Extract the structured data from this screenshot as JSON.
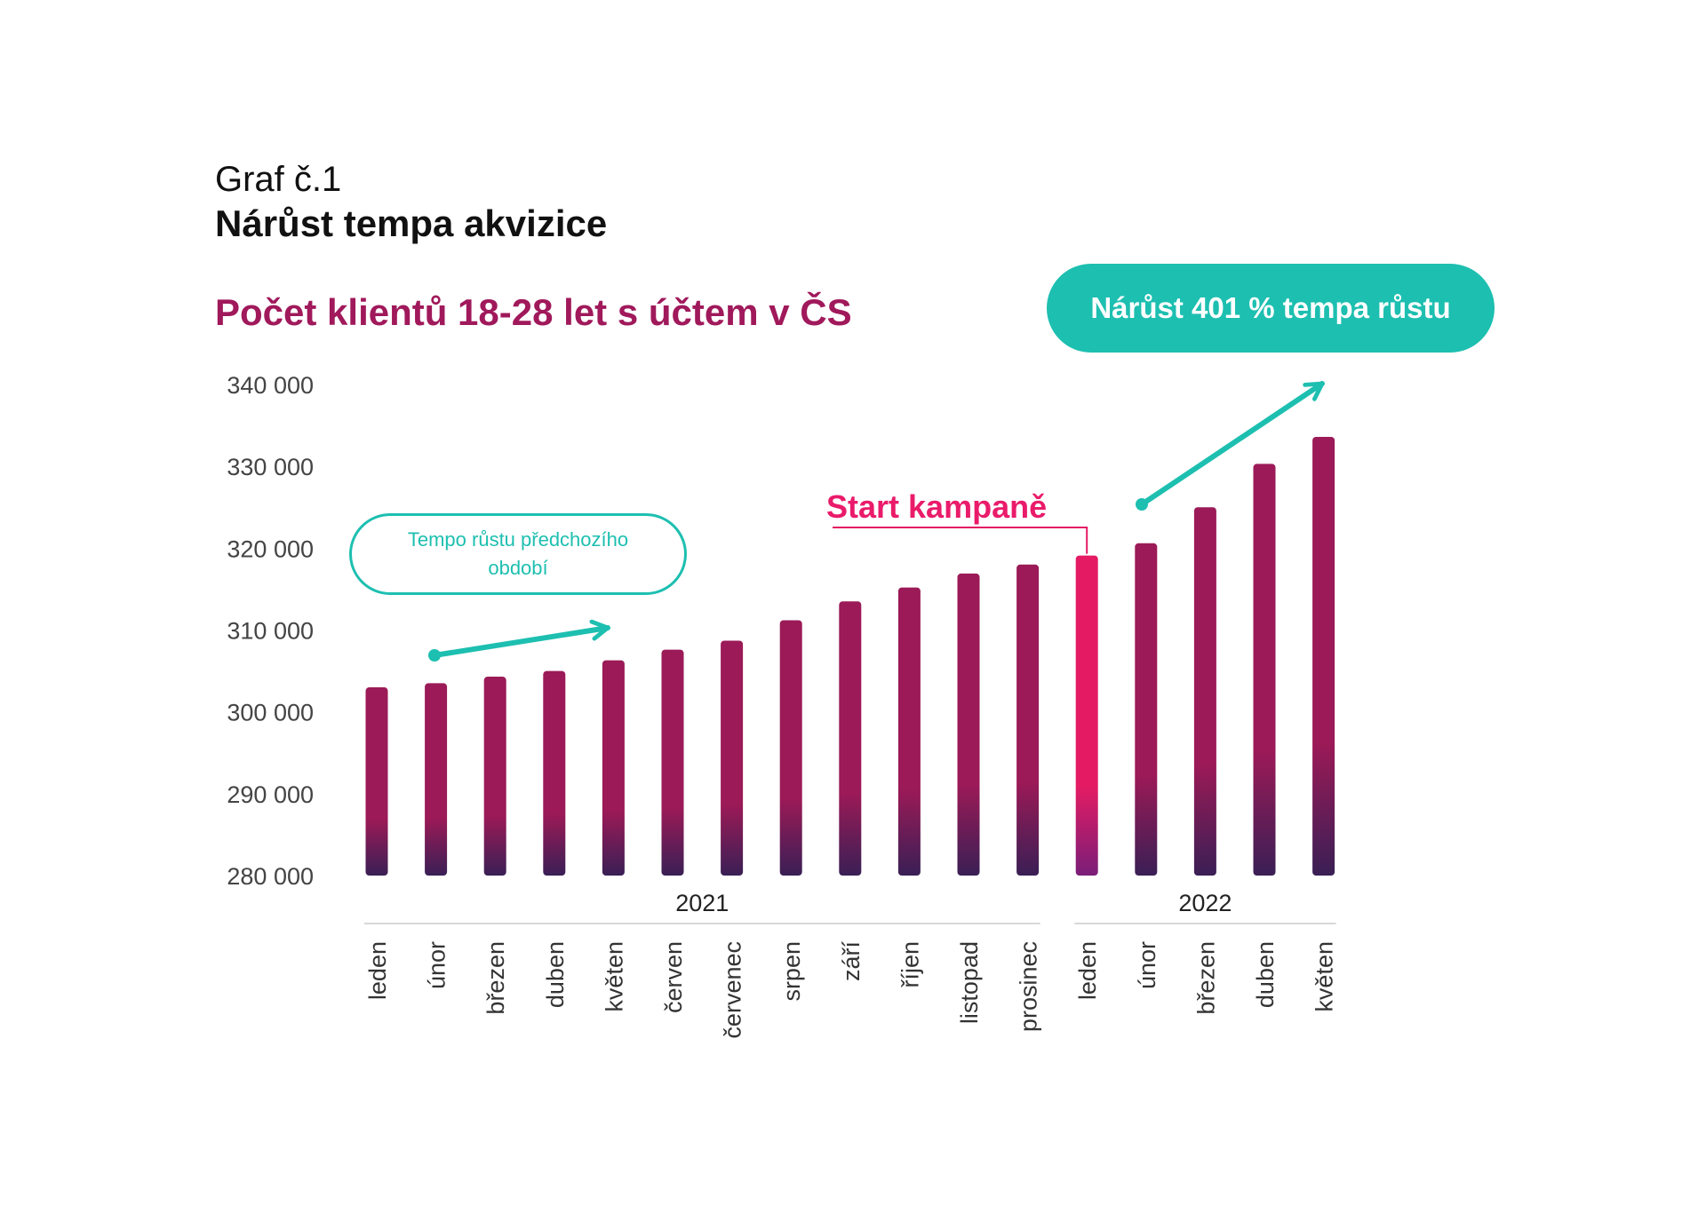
{
  "header": {
    "pretitle": "Graf č.1",
    "title": "Nárůst tempa akvizice"
  },
  "annotations": {
    "growth_pill": "Nárůst 401 % tempa růstu",
    "previous_period": "Tempo růstu předchozího období",
    "campaign_start": "Start kampaně"
  },
  "colors": {
    "bar_top": "#9b1a57",
    "bar_bottom": "#3a1f55",
    "highlight_top": "#e41b63",
    "highlight_bottom": "#7a1e78",
    "teal": "#1dbfb0",
    "title": "#a0195b"
  },
  "chart_data": {
    "type": "bar",
    "title": "Počet klientů 18-28 let s účtem v ČS",
    "xlabel": "",
    "ylabel": "",
    "ylim": [
      280000,
      340000
    ],
    "yticks": [
      280000,
      290000,
      300000,
      310000,
      320000,
      330000,
      340000
    ],
    "ytick_labels": [
      "280 000",
      "290 000",
      "300 000",
      "310 000",
      "320 000",
      "330 000",
      "340 000"
    ],
    "categories": [
      "leden",
      "únor",
      "březen",
      "duben",
      "květen",
      "červen",
      "červenec",
      "srpen",
      "září",
      "říjen",
      "listopad",
      "prosinec",
      "leden",
      "únor",
      "březen",
      "duben",
      "květen"
    ],
    "values": [
      303000,
      303500,
      304300,
      305000,
      306300,
      307600,
      308700,
      311200,
      313500,
      315200,
      316900,
      318000,
      319100,
      320600,
      325000,
      330300,
      333600
    ],
    "highlight_index": 12,
    "groups": [
      {
        "label": "2021",
        "from": 0,
        "to": 11
      },
      {
        "label": "2022",
        "from": 12,
        "to": 16
      }
    ],
    "grid": false,
    "legend": "none"
  }
}
